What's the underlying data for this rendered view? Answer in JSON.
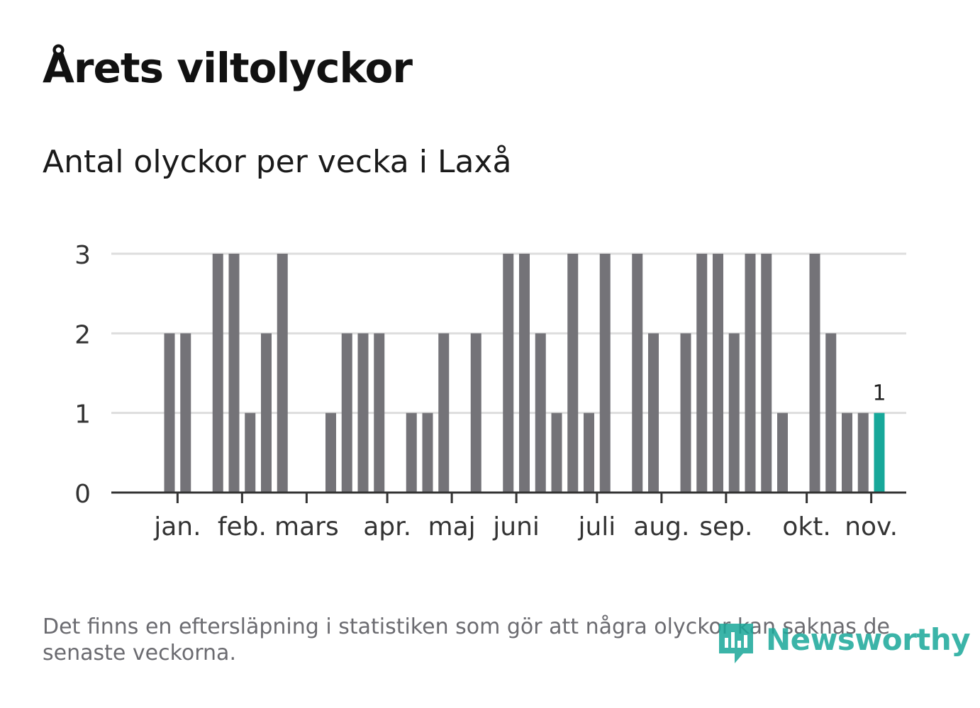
{
  "title": "Årets viltolyckor",
  "subtitle": "Antal olyckor per vecka i Laxå",
  "footnote": "Det finns en eftersläpning i statistiken som gör att några olyckor kan saknas de senaste veckorna.",
  "logo_text": "Newsworthy",
  "logo_icon": "newsworthy-chart-icon",
  "colors": {
    "bar": "#747378",
    "highlight": "#17a89a",
    "grid": "#dddddd",
    "axis": "#333333"
  },
  "chart_data": {
    "type": "bar",
    "ylim": [
      0,
      3
    ],
    "yticks": [
      0,
      1,
      2,
      3
    ],
    "grid": true,
    "x": [
      1,
      2,
      3,
      4,
      5,
      6,
      7,
      8,
      9,
      10,
      11,
      12,
      13,
      14,
      15,
      16,
      17,
      18,
      19,
      20,
      21,
      22,
      23,
      24,
      25,
      26,
      27,
      28,
      29,
      30,
      31,
      32,
      33,
      34,
      35,
      36,
      37,
      38,
      39,
      40,
      41,
      42,
      43,
      44,
      45,
      46,
      47
    ],
    "values": [
      0,
      0,
      2,
      2,
      0,
      3,
      3,
      1,
      2,
      3,
      0,
      0,
      1,
      2,
      2,
      2,
      0,
      1,
      1,
      2,
      0,
      2,
      0,
      3,
      3,
      2,
      1,
      3,
      1,
      3,
      0,
      3,
      2,
      0,
      2,
      3,
      3,
      2,
      3,
      3,
      1,
      0,
      3,
      2,
      1,
      1,
      1
    ],
    "highlight_index": 46,
    "highlight_label": "1",
    "month_ticks": [
      {
        "label": "jan.",
        "week": 3.5
      },
      {
        "label": "feb.",
        "week": 7.5
      },
      {
        "label": "mars",
        "week": 11.5
      },
      {
        "label": "apr.",
        "week": 16.5
      },
      {
        "label": "maj",
        "week": 20.5
      },
      {
        "label": "juni",
        "week": 24.5
      },
      {
        "label": "juli",
        "week": 29.5
      },
      {
        "label": "aug.",
        "week": 33.5
      },
      {
        "label": "sep.",
        "week": 37.5
      },
      {
        "label": "okt.",
        "week": 42.5
      },
      {
        "label": "nov.",
        "week": 46.5
      }
    ]
  }
}
